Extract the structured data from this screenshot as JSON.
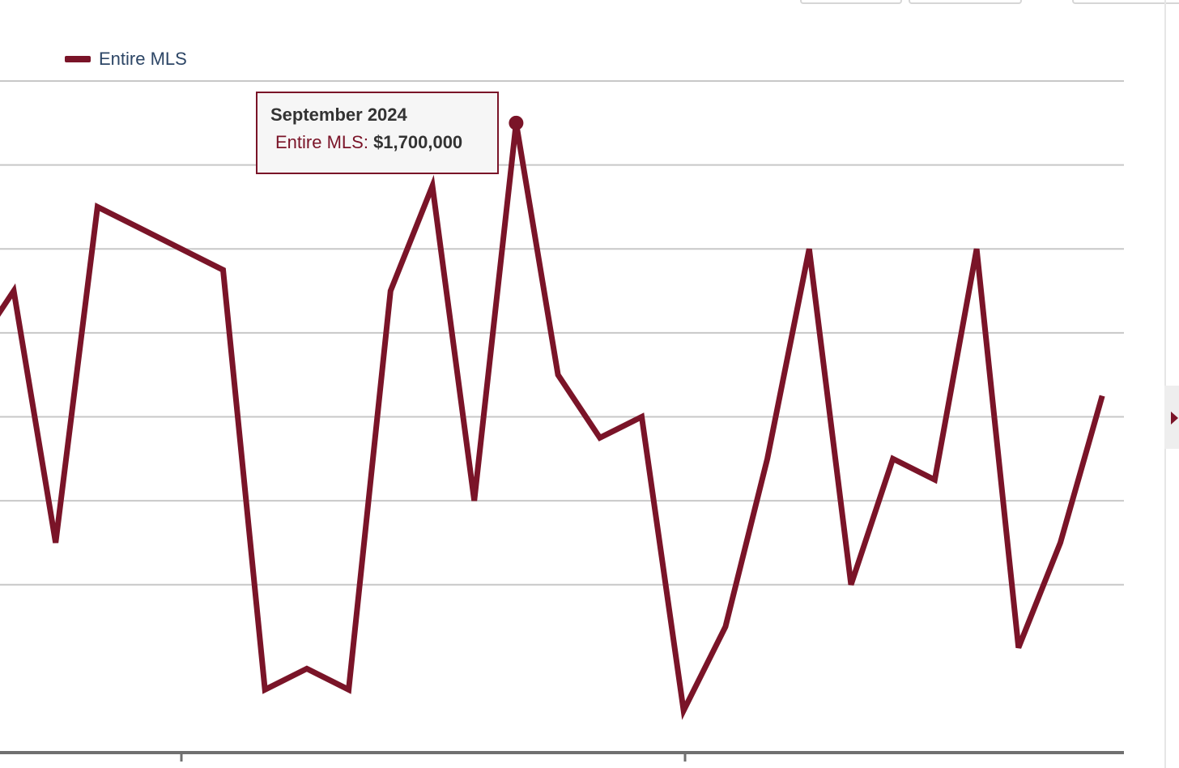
{
  "colors": {
    "series": "#7a1428",
    "grid": "#c8c8c8",
    "axis": "#707070",
    "legend_text": "#2d4666"
  },
  "legend": {
    "label": "Entire MLS"
  },
  "tooltip": {
    "title": "September 2024",
    "series_label": "Entire MLS:",
    "value_label": "$1,700,000"
  },
  "chart_data": {
    "type": "line",
    "series": [
      {
        "name": "Entire MLS",
        "values": [
          1.59,
          1.62,
          1.5,
          1.66,
          1.65,
          1.64,
          1.63,
          1.43,
          1.44,
          1.43,
          1.62,
          1.67,
          1.52,
          1.7,
          1.58,
          1.55,
          1.56,
          1.42,
          1.46,
          1.54,
          1.64,
          1.48,
          1.54,
          1.53,
          1.64,
          1.45,
          1.5,
          1.57
        ]
      }
    ],
    "highlight_index": 13,
    "ylim": [
      1.4,
      1.72
    ],
    "gridlines": [
      1.48,
      1.52,
      1.56,
      1.6,
      1.64,
      1.68
    ],
    "grid": true,
    "legend_position": "top-left"
  }
}
